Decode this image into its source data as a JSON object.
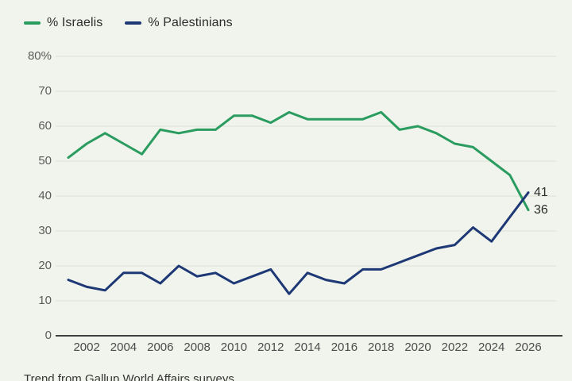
{
  "legend": {
    "israelis_label": "% Israelis",
    "palestinians_label": "% Palestinians"
  },
  "end_labels": {
    "palestinians": "41",
    "israelis": "36"
  },
  "caption": "Trend from Gallup World Affairs surveys",
  "colors": {
    "background": "#f0f4ec",
    "israelis": "#2b9c5f",
    "palestinians": "#1e3876",
    "gridline": "#dcdfd6",
    "axis": "#404040",
    "text_dark": "#2d2d2d",
    "y_tick_gray": "#5c5c5c",
    "x_tick_gray": "#4c4c4c"
  },
  "chart_data": {
    "type": "line",
    "title": "",
    "xlabel": "",
    "ylabel": "",
    "grid": true,
    "legend_position": "top-left",
    "ylim": [
      0,
      80
    ],
    "x": [
      2001,
      2002,
      2003,
      2004,
      2005,
      2006,
      2007,
      2008,
      2009,
      2010,
      2011,
      2012,
      2013,
      2014,
      2015,
      2016,
      2017,
      2018,
      2019,
      2020,
      2021,
      2022,
      2023,
      2024,
      2025,
      2026
    ],
    "series": [
      {
        "name": "% Israelis",
        "color": "#2b9c5f",
        "values": [
          51,
          55,
          58,
          55,
          52,
          59,
          58,
          59,
          59,
          63,
          63,
          61,
          64,
          62,
          62,
          62,
          62,
          64,
          59,
          60,
          58,
          55,
          54,
          50,
          46,
          36
        ],
        "end_value_label": "36"
      },
      {
        "name": "% Palestinians",
        "color": "#1e3876",
        "values": [
          16,
          14,
          13,
          18,
          18,
          15,
          20,
          17,
          18,
          15,
          17,
          19,
          12,
          18,
          16,
          15,
          19,
          19,
          21,
          23,
          25,
          26,
          31,
          27,
          34,
          41
        ],
        "end_value_label": "41"
      }
    ],
    "y_ticks": [
      {
        "value": 80,
        "label": "80%"
      },
      {
        "value": 70,
        "label": "70"
      },
      {
        "value": 60,
        "label": "60"
      },
      {
        "value": 50,
        "label": "50"
      },
      {
        "value": 40,
        "label": "40"
      },
      {
        "value": 30,
        "label": "30"
      },
      {
        "value": 20,
        "label": "20"
      },
      {
        "value": 10,
        "label": "10"
      },
      {
        "value": 0,
        "label": "0"
      }
    ],
    "x_tick_years": [
      2002,
      2004,
      2006,
      2008,
      2010,
      2012,
      2014,
      2016,
      2018,
      2020,
      2022,
      2024,
      2026
    ],
    "source": "Trend from Gallup World Affairs surveys"
  }
}
